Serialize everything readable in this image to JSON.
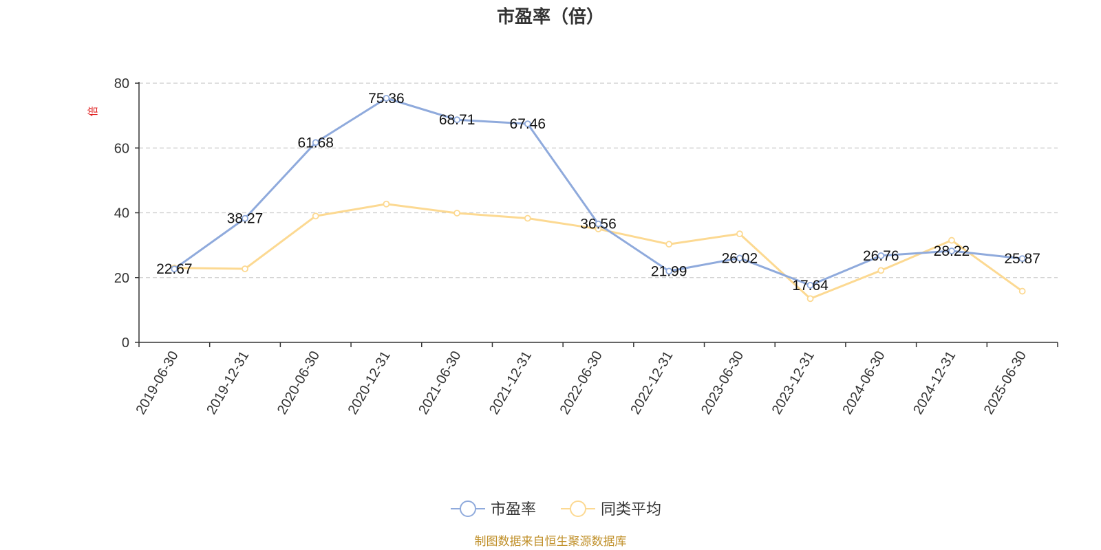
{
  "chart_data": {
    "type": "line",
    "title": "市盈率（倍）",
    "unit_label": "倍",
    "categories": [
      "2019-06-30",
      "2019-12-31",
      "2020-06-30",
      "2020-12-31",
      "2021-06-30",
      "2021-12-31",
      "2022-06-30",
      "2022-12-31",
      "2023-06-30",
      "2023-12-31",
      "2024-06-30",
      "2024-12-31",
      "2025-06-30"
    ],
    "series": [
      {
        "name": "市盈率",
        "color": "#8faadc",
        "values": [
          22.67,
          38.27,
          61.68,
          75.36,
          68.71,
          67.46,
          36.56,
          21.99,
          26.02,
          17.64,
          26.76,
          28.22,
          25.87
        ],
        "labels": [
          "22.67",
          "38.27",
          "61.68",
          "75.36",
          "68.71",
          "67.46",
          "36.56",
          "21.99",
          "26.02",
          "17.64",
          "26.76",
          "28.22",
          "25.87"
        ]
      },
      {
        "name": "同类平均",
        "color": "#fcd992",
        "values": [
          23.0,
          22.7,
          39.0,
          42.7,
          39.9,
          38.3,
          35.0,
          30.3,
          33.5,
          13.5,
          22.2,
          31.5,
          15.8
        ]
      }
    ],
    "ylim": [
      0,
      80
    ],
    "yticks": [
      0,
      20,
      40,
      60,
      80
    ],
    "grid": "horizontal dashed",
    "legend_position": "bottom-center"
  },
  "footer": {
    "source": "制图数据来自恒生聚源数据库",
    "source_color": "#c0902a"
  }
}
